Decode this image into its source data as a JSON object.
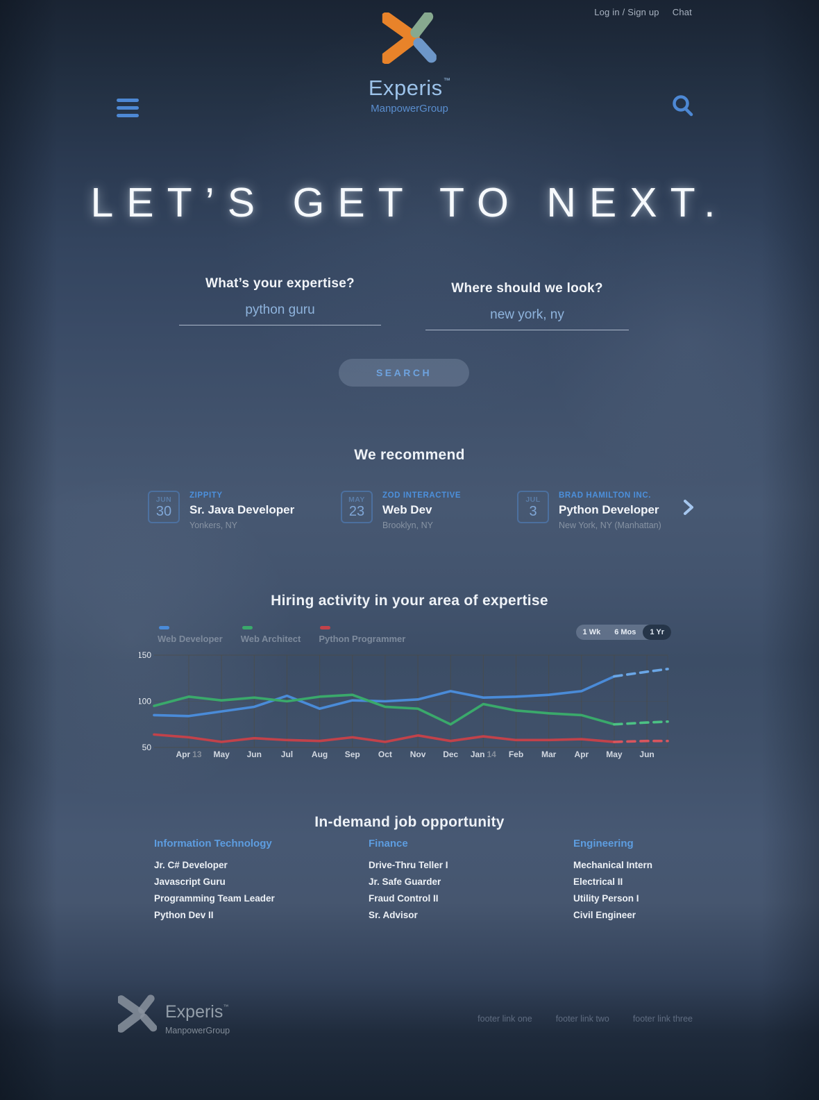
{
  "colors": {
    "brand_orange": "#e8832a",
    "brand_green": "#87a98f",
    "brand_blue": "#6d97c9",
    "accent_blue": "#4d88d4",
    "heading_white": "#eef2f7"
  },
  "header": {
    "login_label": "Log in / Sign up",
    "chat_label": "Chat",
    "brand": "Experis",
    "brand_tm": "™",
    "brand_sub": "ManpowerGroup"
  },
  "hero": {
    "title": "LET’S GET TO NEXT.",
    "expertise_label": "What’s your expertise?",
    "expertise_value": "python guru",
    "location_label": "Where should we look?",
    "location_value": "new york, ny",
    "search_label": "SEARCH"
  },
  "recommend": {
    "title": "We recommend",
    "jobs": [
      {
        "month": "JUN",
        "day": "30",
        "company": "ZIPPITY",
        "title": "Sr. Java Developer",
        "location": "Yonkers, NY"
      },
      {
        "month": "MAY",
        "day": "23",
        "company": "ZOD INTERACTIVE",
        "title": "Web Dev",
        "location": "Brooklyn, NY"
      },
      {
        "month": "JUL",
        "day": "3",
        "company": "BRAD HAMILTON INC.",
        "title": "Python Developer",
        "location": "New York, NY (Manhattan)"
      }
    ]
  },
  "chart": {
    "title": "Hiring activity in your area of expertise",
    "ranges": [
      "1 Wk",
      "6 Mos",
      "1 Yr"
    ],
    "active_range": "1 Yr"
  },
  "chart_data": {
    "type": "line",
    "title": "Hiring activity in your area of expertise",
    "x_tick_labels": [
      "Apr 13",
      "May",
      "Jun",
      "Jul",
      "Aug",
      "Sep",
      "Oct",
      "Nov",
      "Dec",
      "Jan 14",
      "Feb",
      "Mar",
      "Apr",
      "May",
      "Jun"
    ],
    "ylim": [
      50,
      150
    ],
    "yticks": [
      50,
      100,
      150
    ],
    "grid": true,
    "legend_position": "top-left",
    "series": [
      {
        "name": "Web Developer",
        "color": "#4a8bd8",
        "dash_color": "#6aa6e6",
        "values_solid": [
          85,
          84,
          89,
          94,
          106,
          92,
          101,
          100,
          102,
          111,
          104,
          105,
          107,
          111,
          127
        ],
        "values_projected": [
          127,
          132,
          135
        ]
      },
      {
        "name": "Web Architect",
        "color": "#3aa96b",
        "dash_color": "#4cc184",
        "values_solid": [
          95,
          105,
          101,
          104,
          100,
          105,
          107,
          94,
          92,
          75,
          97,
          90,
          87,
          85,
          75
        ],
        "values_projected": [
          75,
          77,
          78
        ]
      },
      {
        "name": "Python Programmer",
        "color": "#c2424a",
        "dash_color": "#d9555d",
        "values_solid": [
          64,
          61,
          56,
          60,
          58,
          57,
          61,
          56,
          63,
          57,
          62,
          58,
          58,
          59,
          56
        ],
        "values_projected": [
          56,
          57,
          57
        ]
      }
    ],
    "series_note": "values_solid begins at chart left edge then one point per month Apr 13 through May; values_projected are the dashed forecast points May, Jun, right edge"
  },
  "in_demand": {
    "title": "In-demand job opportunity",
    "columns": [
      {
        "heading": "Information Technology",
        "items": [
          "Jr. C# Developer",
          "Javascript Guru",
          "Programming Team Leader",
          "Python Dev II"
        ]
      },
      {
        "heading": "Finance",
        "items": [
          "Drive-Thru Teller I",
          "Jr. Safe Guarder",
          "Fraud Control II",
          "Sr. Advisor"
        ]
      },
      {
        "heading": "Engineering",
        "items": [
          "Mechanical Intern",
          "Electrical II",
          "Utility Person I",
          "Civil Engineer"
        ]
      }
    ]
  },
  "footer": {
    "brand": "Experis",
    "brand_tm": "™",
    "brand_sub": "ManpowerGroup",
    "links": [
      "footer link one",
      "footer link two",
      "footer link three"
    ]
  }
}
